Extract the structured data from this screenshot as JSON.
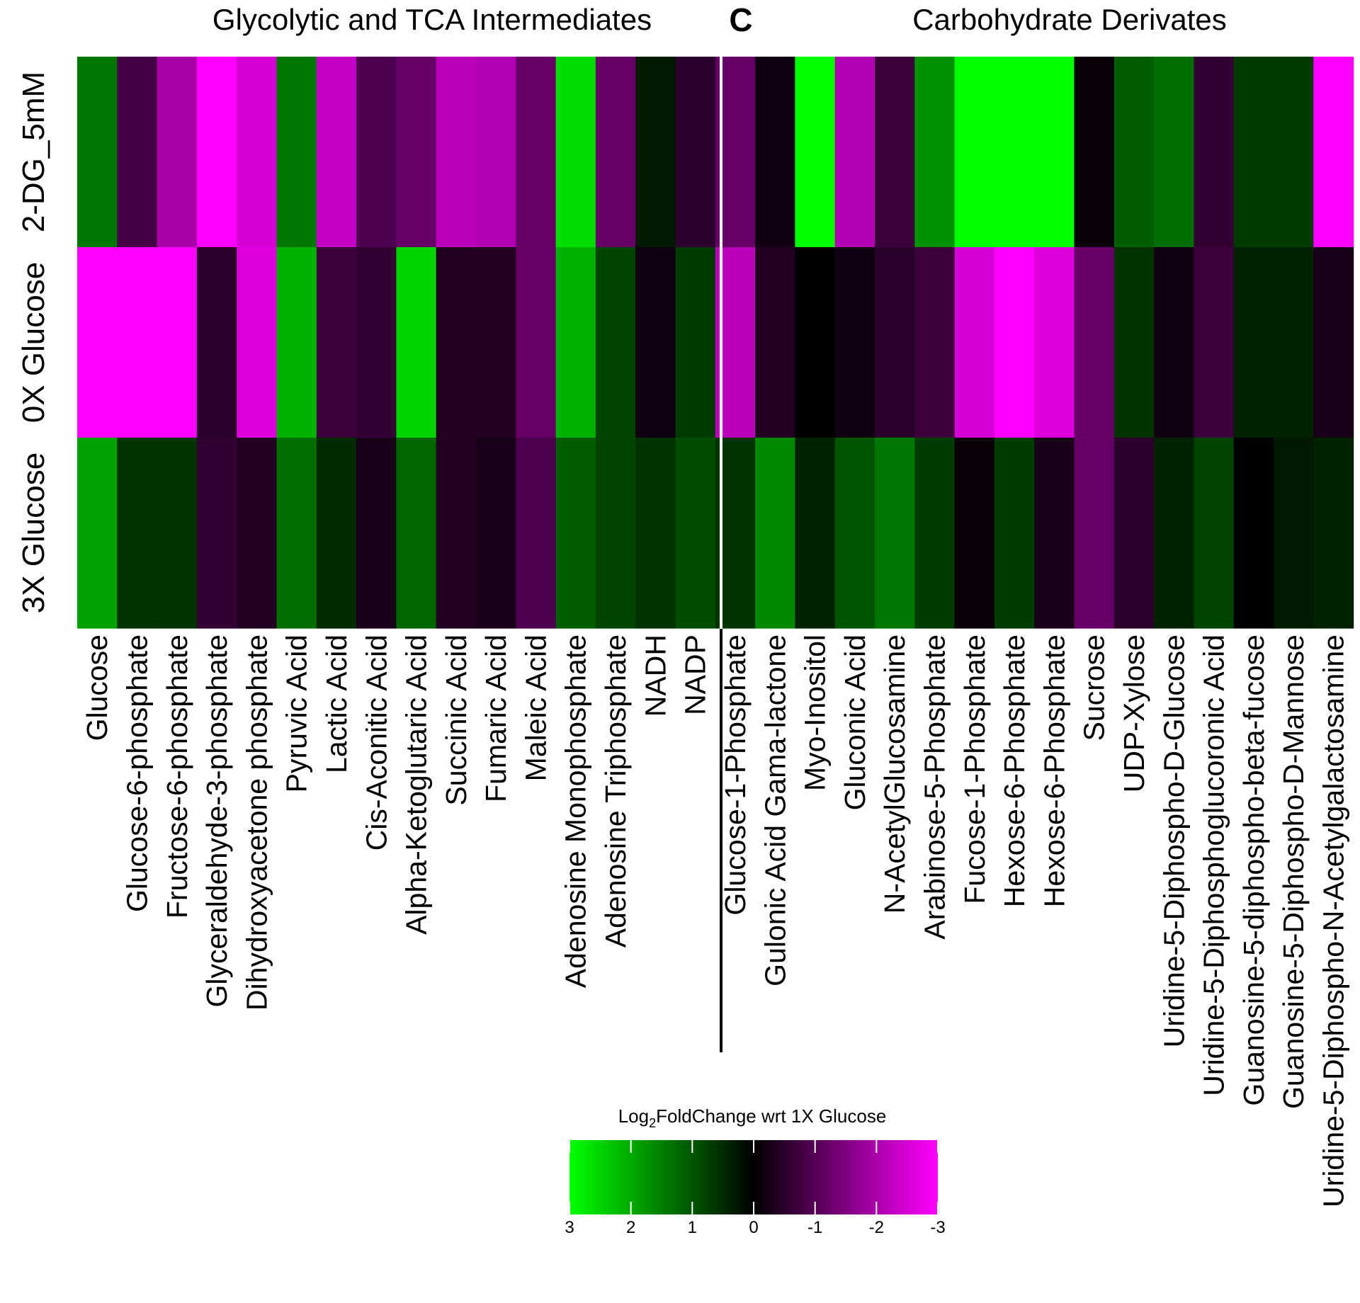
{
  "chart_data": {
    "type": "heatmap",
    "panel_titles": [
      "Glycolytic and TCA Intermediates",
      "Carbohydrate Derivates"
    ],
    "panel_letter": "C",
    "rows": [
      "2-DG_5mM",
      "0X Glucose",
      "3X Glucose"
    ],
    "columns": [
      "Glucose",
      "Glucose-6-phosphate",
      "Fructose-6-phosphate",
      "Glyceraldehyde-3-phosphate",
      "Dihydroxyacetone phosphate",
      "Pyruvic Acid",
      "Lactic Acid",
      "Cis-Aconitic Acid",
      "Alpha-Ketoglutaric Acid",
      "Succinic Acid",
      "Fumaric Acid",
      "Maleic Acid",
      "Adenosine Monophosphate",
      "Adenosine Triphosphate",
      "NADH",
      "NADP",
      "Glucose-1-Phosphate",
      "Gulonic Acid Gama-lactone",
      "Myo-Inositol",
      "Gluconic Acid",
      "N-AcetylGlucosamine",
      "Arabinose-5-Phosphate",
      "Fucose-1-Phosphate",
      "Hexose-6-Phosphate",
      "Hexose-6-Phosphate",
      "Sucrose",
      "UDP-Xylose",
      "Uridine-5-Diphospho-D-Glucose",
      "Uridine-5-Diphosphoglucoronic Acid",
      "Guanosine-5-diphospho-beta-fucose",
      "Guanosine-5-Diphospho-D-Mannose",
      "Uridine-5-Diphospho-N-Acetylgalactosamine"
    ],
    "panel_split_after_column": 16,
    "values": [
      [
        1.4,
        -0.8,
        -2.0,
        -3.0,
        -2.5,
        1.4,
        -2.3,
        -0.9,
        -1.2,
        -2.2,
        -2.1,
        -1.2,
        2.6,
        -1.2,
        0.3,
        -0.5,
        -1.2,
        -0.2,
        3.0,
        -2.1,
        -0.7,
        1.7,
        3.0,
        3.0,
        3.0,
        -0.1,
        1.1,
        1.3,
        -0.6,
        0.7,
        0.7,
        -3.0
      ],
      [
        -3.0,
        -3.0,
        -3.0,
        -0.5,
        -2.6,
        2.1,
        -0.7,
        -0.6,
        2.5,
        -0.4,
        -0.4,
        -1.2,
        2.1,
        0.8,
        -0.2,
        0.7,
        -2.2,
        -0.4,
        0.0,
        -0.2,
        -0.5,
        -0.7,
        -2.5,
        -3.0,
        -2.6,
        -1.2,
        0.6,
        -0.2,
        -0.7,
        0.4,
        0.4,
        -0.3
      ],
      [
        1.9,
        0.6,
        0.6,
        -0.6,
        -0.4,
        1.3,
        0.5,
        -0.3,
        1.2,
        -0.4,
        -0.3,
        -0.9,
        1.1,
        0.8,
        0.6,
        0.9,
        0.6,
        1.6,
        0.4,
        1.0,
        1.4,
        0.7,
        -0.1,
        0.7,
        -0.3,
        -1.2,
        -0.5,
        0.4,
        0.8,
        0.0,
        0.3,
        0.4
      ]
    ],
    "color_scale": {
      "min": -3,
      "max": 3,
      "low_color": "#ff00ff",
      "mid_color": "#000000",
      "high_color": "#00ff00",
      "title_prefix": "Log",
      "title_subscript": "2",
      "title_suffix": "FoldChange wrt 1X Glucose",
      "ticks": [
        3,
        2,
        1,
        0,
        -1,
        -2,
        -3
      ],
      "tick_labels": [
        "3",
        "2",
        "1",
        "0",
        "-1",
        "-2",
        "-3"
      ]
    }
  }
}
